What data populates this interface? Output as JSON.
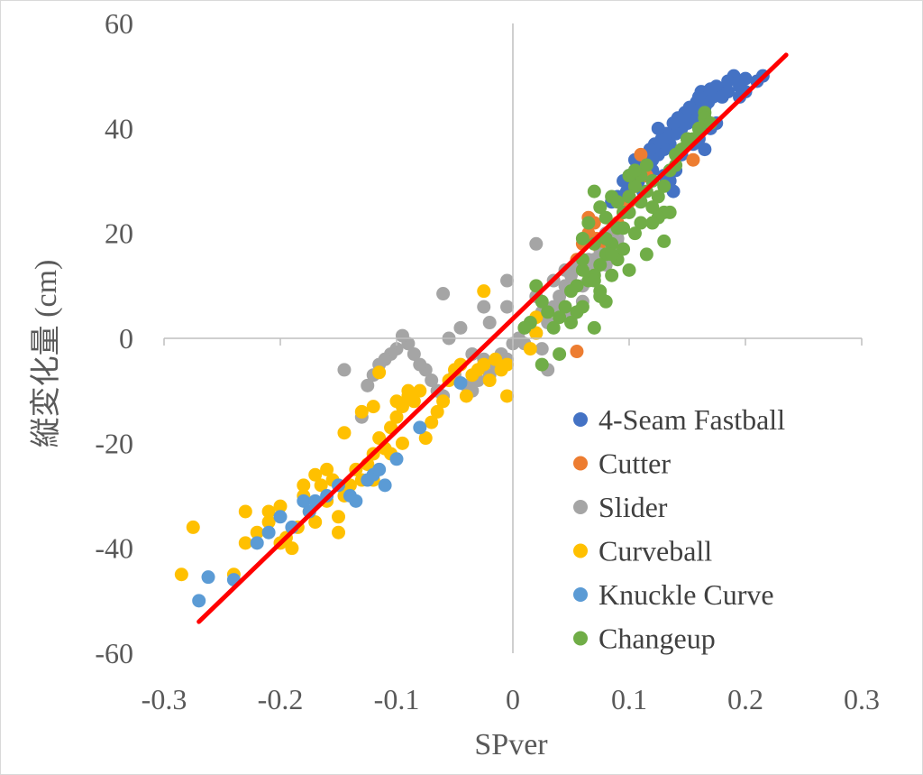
{
  "chart_data": {
    "type": "scatter",
    "xlabel": "SPver",
    "ylabel": "縦変化量 (cm)",
    "xlim": [
      -0.3,
      0.3
    ],
    "ylim": [
      -60,
      60
    ],
    "x_ticks": [
      "-0.3",
      "-0.2",
      "-0.1",
      "0",
      "0.1",
      "0.2",
      "0.3"
    ],
    "y_ticks": [
      "60",
      "40",
      "20",
      "0",
      "-20",
      "-40",
      "-60"
    ],
    "legend_position": "bottom-right",
    "grid": false,
    "trendline": {
      "color": "#ff0000",
      "x": [
        -0.27,
        0.235
      ],
      "y": [
        -54,
        54
      ]
    },
    "series": [
      {
        "name": "4-Seam Fastball",
        "color": "#4472c4",
        "points": [
          [
            0.215,
            50
          ],
          [
            0.21,
            49
          ],
          [
            0.2,
            49.5
          ],
          [
            0.195,
            48
          ],
          [
            0.19,
            50
          ],
          [
            0.185,
            49
          ],
          [
            0.18,
            47
          ],
          [
            0.175,
            48
          ],
          [
            0.172,
            46
          ],
          [
            0.17,
            47.5
          ],
          [
            0.168,
            45
          ],
          [
            0.165,
            44
          ],
          [
            0.162,
            47
          ],
          [
            0.16,
            43
          ],
          [
            0.158,
            45
          ],
          [
            0.155,
            42
          ],
          [
            0.152,
            44
          ],
          [
            0.15,
            41
          ],
          [
            0.148,
            43
          ],
          [
            0.145,
            40
          ],
          [
            0.142,
            42
          ],
          [
            0.14,
            39
          ],
          [
            0.138,
            41
          ],
          [
            0.135,
            37
          ],
          [
            0.132,
            39
          ],
          [
            0.13,
            36
          ],
          [
            0.128,
            38
          ],
          [
            0.125,
            35
          ],
          [
            0.122,
            37
          ],
          [
            0.12,
            34
          ],
          [
            0.118,
            36
          ],
          [
            0.115,
            33
          ],
          [
            0.112,
            31
          ],
          [
            0.11,
            33
          ],
          [
            0.108,
            30
          ],
          [
            0.105,
            32
          ],
          [
            0.102,
            29
          ],
          [
            0.1,
            31
          ],
          [
            0.098,
            28
          ],
          [
            0.095,
            30
          ],
          [
            0.09,
            27
          ],
          [
            0.085,
            26
          ],
          [
            0.13,
            31
          ],
          [
            0.14,
            32
          ],
          [
            0.165,
            36
          ],
          [
            0.175,
            41
          ],
          [
            0.18,
            46
          ],
          [
            0.16,
            46
          ],
          [
            0.15,
            38
          ],
          [
            0.125,
            40
          ],
          [
            0.135,
            30
          ],
          [
            0.145,
            35
          ],
          [
            0.112,
            28
          ],
          [
            0.105,
            34
          ],
          [
            0.17,
            40
          ],
          [
            0.185,
            47
          ],
          [
            0.2,
            47
          ],
          [
            0.155,
            37
          ],
          [
            0.12,
            32
          ],
          [
            0.138,
            28
          ],
          [
            0.195,
            46
          ],
          [
            0.16,
            38
          ]
        ]
      },
      {
        "name": "Cutter",
        "color": "#ed7d31",
        "points": [
          [
            0.155,
            34
          ],
          [
            0.11,
            35
          ],
          [
            0.105,
            29
          ],
          [
            0.1,
            26
          ],
          [
            0.095,
            24
          ],
          [
            0.09,
            22
          ],
          [
            0.085,
            20
          ],
          [
            0.08,
            18
          ],
          [
            0.075,
            17
          ],
          [
            0.07,
            22
          ],
          [
            0.065,
            20
          ],
          [
            0.06,
            18
          ],
          [
            0.055,
            15
          ],
          [
            0.055,
            -2.5
          ],
          [
            0.085,
            19
          ],
          [
            0.1,
            27
          ],
          [
            0.115,
            31
          ],
          [
            0.065,
            23
          ],
          [
            0.072,
            19
          ],
          [
            0.088,
            17
          ]
        ]
      },
      {
        "name": "Slider",
        "color": "#a5a5a5",
        "points": [
          [
            0.02,
            18
          ],
          [
            0.02,
            8
          ],
          [
            0.025,
            5
          ],
          [
            0.03,
            3
          ],
          [
            0.035,
            6
          ],
          [
            0.04,
            8
          ],
          [
            0.045,
            10
          ],
          [
            0.05,
            12
          ],
          [
            0.055,
            14
          ],
          [
            0.06,
            10
          ],
          [
            0.065,
            15
          ],
          [
            0.07,
            13
          ],
          [
            0.075,
            16
          ],
          [
            0.08,
            14
          ],
          [
            0.085,
            17
          ],
          [
            0.09,
            18
          ],
          [
            0.03,
            -6
          ],
          [
            0.025,
            -2
          ],
          [
            0.02,
            1
          ],
          [
            0.015,
            3
          ],
          [
            0.01,
            2
          ],
          [
            0.005,
            0
          ],
          [
            0,
            -1
          ],
          [
            -0.005,
            -4
          ],
          [
            -0.01,
            -3
          ],
          [
            -0.015,
            -5
          ],
          [
            -0.02,
            -7
          ],
          [
            -0.025,
            -4
          ],
          [
            -0.03,
            -8
          ],
          [
            -0.035,
            -10
          ],
          [
            -0.04,
            -9
          ],
          [
            -0.05,
            -7
          ],
          [
            -0.06,
            -11
          ],
          [
            -0.065,
            -10
          ],
          [
            -0.07,
            -8
          ],
          [
            -0.075,
            -6
          ],
          [
            -0.08,
            -5
          ],
          [
            -0.085,
            -3
          ],
          [
            -0.09,
            -1
          ],
          [
            -0.095,
            0.5
          ],
          [
            -0.1,
            -2
          ],
          [
            -0.105,
            -3
          ],
          [
            -0.11,
            -4
          ],
          [
            -0.115,
            -5
          ],
          [
            -0.12,
            -7
          ],
          [
            -0.125,
            -9
          ],
          [
            -0.13,
            -15
          ],
          [
            -0.145,
            -6
          ],
          [
            -0.06,
            8.5
          ],
          [
            -0.045,
            2
          ],
          [
            -0.025,
            6
          ],
          [
            -0.005,
            11
          ],
          [
            -0.005,
            6
          ],
          [
            -0.055,
            0
          ],
          [
            -0.035,
            -3
          ],
          [
            0.035,
            11
          ],
          [
            0.045,
            13
          ],
          [
            0.05,
            4
          ],
          [
            0.06,
            7
          ],
          [
            0.07,
            15
          ],
          [
            0.08,
            20
          ],
          [
            0.09,
            19
          ],
          [
            0.01,
            -1
          ],
          [
            -0.02,
            3
          ]
        ]
      },
      {
        "name": "Curveball",
        "color": "#ffc000",
        "points": [
          [
            -0.285,
            -45
          ],
          [
            -0.275,
            -36
          ],
          [
            -0.24,
            -45
          ],
          [
            -0.23,
            -33
          ],
          [
            -0.22,
            -37
          ],
          [
            -0.21,
            -35
          ],
          [
            -0.2,
            -32
          ],
          [
            -0.195,
            -38
          ],
          [
            -0.19,
            -40
          ],
          [
            -0.185,
            -36
          ],
          [
            -0.18,
            -30
          ],
          [
            -0.175,
            -33
          ],
          [
            -0.17,
            -26
          ],
          [
            -0.165,
            -28
          ],
          [
            -0.16,
            -31
          ],
          [
            -0.155,
            -27
          ],
          [
            -0.15,
            -34
          ],
          [
            -0.145,
            -30
          ],
          [
            -0.14,
            -28
          ],
          [
            -0.135,
            -25
          ],
          [
            -0.13,
            -27
          ],
          [
            -0.125,
            -24
          ],
          [
            -0.12,
            -22
          ],
          [
            -0.115,
            -19
          ],
          [
            -0.11,
            -21
          ],
          [
            -0.105,
            -17
          ],
          [
            -0.1,
            -15
          ],
          [
            -0.095,
            -13
          ],
          [
            -0.09,
            -11
          ],
          [
            -0.085,
            -12
          ],
          [
            -0.08,
            -10
          ],
          [
            -0.075,
            -19
          ],
          [
            -0.07,
            -16
          ],
          [
            -0.065,
            -14
          ],
          [
            -0.06,
            -12
          ],
          [
            -0.055,
            -8
          ],
          [
            -0.05,
            -6
          ],
          [
            -0.045,
            -5
          ],
          [
            -0.04,
            -11
          ],
          [
            -0.035,
            -7
          ],
          [
            -0.03,
            -6
          ],
          [
            -0.025,
            -5
          ],
          [
            -0.02,
            -8
          ],
          [
            -0.015,
            -4
          ],
          [
            -0.01,
            -6
          ],
          [
            -0.005,
            -11
          ],
          [
            -0.005,
            -5
          ],
          [
            -0.025,
            9
          ],
          [
            0.015,
            -2
          ],
          [
            0.02,
            1
          ],
          [
            0.02,
            4
          ],
          [
            -0.115,
            -6.5
          ],
          [
            -0.145,
            -18
          ],
          [
            -0.13,
            -14
          ],
          [
            -0.21,
            -33
          ],
          [
            -0.2,
            -39
          ],
          [
            -0.23,
            -39
          ],
          [
            -0.17,
            -35
          ],
          [
            -0.15,
            -37
          ],
          [
            -0.12,
            -13
          ],
          [
            -0.1,
            -12
          ],
          [
            -0.09,
            -10
          ],
          [
            -0.18,
            -28
          ],
          [
            -0.16,
            -25
          ],
          [
            -0.12,
            -27
          ],
          [
            -0.105,
            -22
          ],
          [
            -0.095,
            -20
          ]
        ]
      },
      {
        "name": "Knuckle Curve",
        "color": "#5b9bd5",
        "points": [
          [
            -0.27,
            -50
          ],
          [
            -0.262,
            -45.5
          ],
          [
            -0.24,
            -46
          ],
          [
            -0.22,
            -39
          ],
          [
            -0.21,
            -37
          ],
          [
            -0.2,
            -34
          ],
          [
            -0.19,
            -36
          ],
          [
            -0.18,
            -31
          ],
          [
            -0.175,
            -33
          ],
          [
            -0.17,
            -31
          ],
          [
            -0.16,
            -30
          ],
          [
            -0.15,
            -28
          ],
          [
            -0.14,
            -30
          ],
          [
            -0.135,
            -31
          ],
          [
            -0.125,
            -27
          ],
          [
            -0.12,
            -26
          ],
          [
            -0.115,
            -25
          ],
          [
            -0.11,
            -28
          ],
          [
            -0.1,
            -23
          ],
          [
            -0.08,
            -17
          ],
          [
            -0.045,
            -8.5
          ]
        ]
      },
      {
        "name": "Changeup",
        "color": "#70ad47",
        "points": [
          [
            0.165,
            43
          ],
          [
            0.16,
            40
          ],
          [
            0.155,
            38
          ],
          [
            0.15,
            37
          ],
          [
            0.145,
            36
          ],
          [
            0.14,
            35
          ],
          [
            0.135,
            32
          ],
          [
            0.13,
            29
          ],
          [
            0.13,
            24
          ],
          [
            0.13,
            18.5
          ],
          [
            0.125,
            27
          ],
          [
            0.12,
            30
          ],
          [
            0.115,
            33
          ],
          [
            0.11,
            31
          ],
          [
            0.105,
            29
          ],
          [
            0.1,
            27
          ],
          [
            0.095,
            24
          ],
          [
            0.09,
            21
          ],
          [
            0.085,
            18
          ],
          [
            0.08,
            16
          ],
          [
            0.075,
            14
          ],
          [
            0.07,
            12
          ],
          [
            0.065,
            11
          ],
          [
            0.06,
            13
          ],
          [
            0.055,
            10
          ],
          [
            0.05,
            9
          ],
          [
            0.045,
            6
          ],
          [
            0.04,
            4
          ],
          [
            0.035,
            2
          ],
          [
            0.03,
            5
          ],
          [
            0.025,
            7
          ],
          [
            0.02,
            10
          ],
          [
            0.015,
            3
          ],
          [
            0.01,
            2
          ],
          [
            0.025,
            -5
          ],
          [
            0.04,
            -3
          ],
          [
            0.05,
            3
          ],
          [
            0.06,
            6
          ],
          [
            0.07,
            2
          ],
          [
            0.075,
            9
          ],
          [
            0.08,
            7
          ],
          [
            0.085,
            12
          ],
          [
            0.09,
            15
          ],
          [
            0.095,
            17
          ],
          [
            0.1,
            13
          ],
          [
            0.105,
            20
          ],
          [
            0.11,
            22
          ],
          [
            0.115,
            16
          ],
          [
            0.12,
            25
          ],
          [
            0.125,
            23
          ],
          [
            0.07,
            28
          ],
          [
            0.075,
            25
          ],
          [
            0.08,
            23
          ],
          [
            0.085,
            27
          ],
          [
            0.09,
            26
          ],
          [
            0.06,
            19
          ],
          [
            0.065,
            22
          ],
          [
            0.07,
            18
          ],
          [
            0.1,
            31
          ],
          [
            0.105,
            32
          ],
          [
            0.115,
            28
          ],
          [
            0.12,
            22
          ],
          [
            0.135,
            24
          ],
          [
            0.15,
            38
          ],
          [
            0.165,
            42
          ],
          [
            0.17,
            41
          ],
          [
            0.16,
            40
          ],
          [
            0.14,
            33
          ],
          [
            0.11,
            26
          ],
          [
            0.095,
            21
          ],
          [
            0.085,
            16
          ],
          [
            0.075,
            8
          ],
          [
            0.055,
            5
          ],
          [
            0.06,
            15
          ],
          [
            0.08,
            19
          ],
          [
            0.1,
            24
          ],
          [
            0.07,
            11
          ]
        ]
      }
    ]
  }
}
